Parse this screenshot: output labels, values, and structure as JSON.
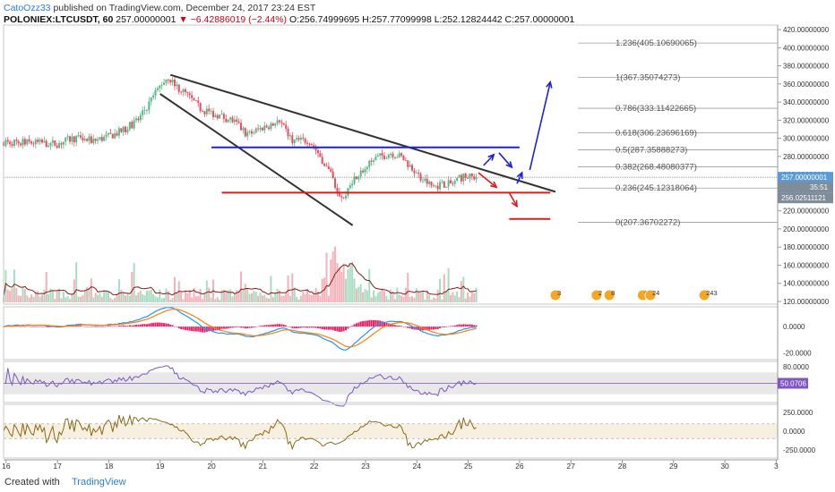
{
  "header": {
    "author": "CatoOzz33",
    "published_text": " published on TradingView.com, December 24, 2017 23:24 EST",
    "symbol": "POLONIEX:LTCUSDT, 60",
    "last": "257.00000001",
    "change": "▼ −6.42886019 (−2.44%)",
    "ohlc_values": "O:256.74999695  H:257.77099998  L:252.12824442  C:257.00000001"
  },
  "footer": {
    "created_with": "Created with",
    "brand": "TradingView"
  },
  "colors": {
    "up": "#53b987",
    "down": "#eb4d5c",
    "blue": "#1e22d6",
    "red": "#e01b1b",
    "trend": "#333333",
    "macd": "#2196f3",
    "signal": "#ff7f0e",
    "hist": "#e91e63",
    "rsi": "#7e57c2",
    "cci": "#8b6914",
    "vol_ma": "#8b1a1a"
  },
  "chart_data": [
    {
      "type": "candlestick",
      "title": "LTCUSDT 60",
      "x_ticks": [
        "16",
        "17",
        "18",
        "19",
        "20",
        "21",
        "22",
        "23",
        "24",
        "25",
        "26",
        "27",
        "28",
        "29",
        "30",
        "3"
      ],
      "y_ticks": [
        "420.00000000",
        "400.00000000",
        "380.00000000",
        "360.00000000",
        "340.00000000",
        "320.00000000",
        "300.00000000",
        "280.00000000",
        "260.00000000",
        "240.00000000",
        "220.00000000",
        "200.00000000",
        "180.00000000",
        "160.00000000",
        "140.00000000",
        "120.00000000"
      ],
      "ylim": [
        117,
        425
      ],
      "price_path": [
        [
          16.0,
          296
        ],
        [
          16.5,
          295
        ],
        [
          17.0,
          294
        ],
        [
          17.3,
          300
        ],
        [
          17.7,
          297
        ],
        [
          18.0,
          302
        ],
        [
          18.3,
          309
        ],
        [
          18.6,
          322
        ],
        [
          19.0,
          358
        ],
        [
          19.15,
          368
        ],
        [
          19.3,
          358
        ],
        [
          19.5,
          349
        ],
        [
          19.8,
          332
        ],
        [
          20.1,
          326
        ],
        [
          20.4,
          320
        ],
        [
          20.7,
          304
        ],
        [
          21.0,
          312
        ],
        [
          21.3,
          318
        ],
        [
          21.6,
          297
        ],
        [
          21.9,
          298
        ],
        [
          22.1,
          282
        ],
        [
          22.3,
          262
        ],
        [
          22.5,
          238
        ],
        [
          22.58,
          232
        ],
        [
          22.7,
          252
        ],
        [
          22.9,
          262
        ],
        [
          23.2,
          278
        ],
        [
          23.5,
          284
        ],
        [
          23.7,
          279
        ],
        [
          23.9,
          268
        ],
        [
          24.1,
          255
        ],
        [
          24.3,
          247
        ],
        [
          24.5,
          249
        ],
        [
          24.7,
          250
        ],
        [
          24.9,
          258
        ],
        [
          25.1,
          257
        ]
      ],
      "last_price": "257.00000001",
      "price_labels": [
        "35:51",
        "256.02511121"
      ],
      "fibonacci": [
        {
          "label": "1.236(405.10690065)",
          "price": 405.1
        },
        {
          "label": "1(367.35074273)",
          "price": 367.35
        },
        {
          "label": "0.786(333.11422665)",
          "price": 333.11
        },
        {
          "label": "0.618(306.23696169)",
          "price": 306.24
        },
        {
          "label": "0.5(287.35888273)",
          "price": 287.36
        },
        {
          "label": "0.382(268.48080377)",
          "price": 268.48
        },
        {
          "label": "0.236(245.12318064)",
          "price": 245.12
        },
        {
          "label": "0(207.36702272)",
          "price": 207.37
        }
      ],
      "lines": {
        "upper_trend": [
          [
            19.2,
            370
          ],
          [
            26.7,
            241
          ]
        ],
        "lower_trend": [
          [
            19.0,
            349
          ],
          [
            22.75,
            204
          ]
        ],
        "resistance": [
          [
            20.0,
            290
          ],
          [
            26.0,
            290
          ]
        ],
        "support": [
          [
            20.2,
            240
          ],
          [
            26.6,
            240
          ]
        ],
        "support_low": [
          [
            25.8,
            211
          ],
          [
            26.6,
            211
          ]
        ]
      },
      "arrows": [
        {
          "color": "blue",
          "points": [
            [
              25.3,
              270
            ],
            [
              25.5,
              282
            ]
          ]
        },
        {
          "color": "blue",
          "points": [
            [
              25.6,
              284
            ],
            [
              25.85,
              268
            ]
          ]
        },
        {
          "color": "blue",
          "points": [
            [
              25.95,
              250
            ],
            [
              26.05,
              262
            ]
          ]
        },
        {
          "color": "blue",
          "points": [
            [
              26.2,
              265
            ],
            [
              26.6,
              362
            ]
          ]
        },
        {
          "color": "red",
          "points": [
            [
              25.2,
              262
            ],
            [
              25.55,
              246
            ]
          ]
        },
        {
          "color": "red",
          "points": [
            [
              25.8,
              240
            ],
            [
              25.95,
              225
            ]
          ]
        }
      ],
      "event_badges": [
        "3",
        "2",
        "8",
        "6",
        "24",
        "243"
      ]
    },
    {
      "type": "bar",
      "title": "Volume",
      "series": [
        {
          "name": "Volume MA",
          "values": []
        }
      ]
    },
    {
      "type": "line",
      "title": "MACD",
      "y_ticks": [
        "0.0000",
        "-20.0000"
      ],
      "ylim": [
        -25,
        15
      ]
    },
    {
      "type": "line",
      "title": "RSI",
      "y_ticks": [
        "80.0000",
        "50.0706"
      ],
      "ylim": [
        15,
        90
      ],
      "last_value": "50.0706"
    },
    {
      "type": "line",
      "title": "CCI",
      "y_ticks": [
        "250.0000",
        "0.0000",
        "-250.0000"
      ],
      "ylim": [
        -360,
        360
      ]
    }
  ]
}
